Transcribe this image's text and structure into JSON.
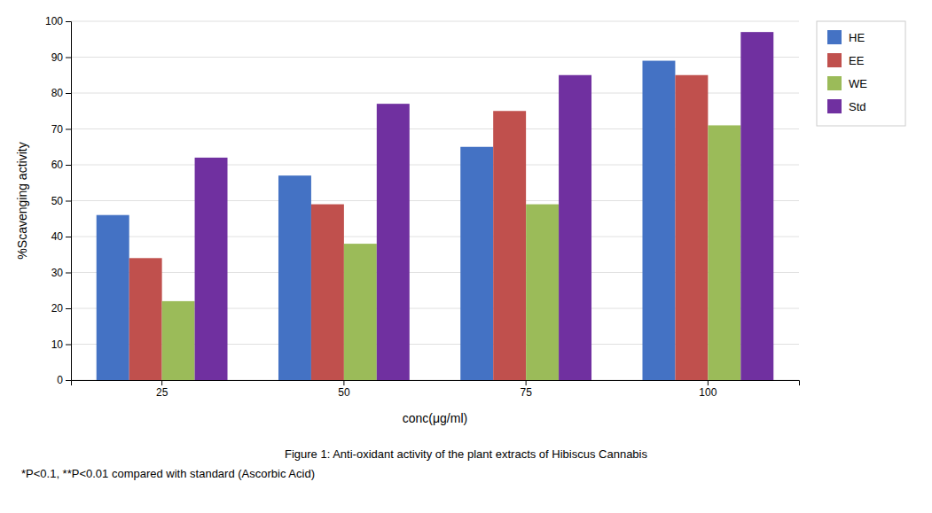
{
  "chart_data": {
    "type": "bar",
    "categories": [
      "25",
      "50",
      "75",
      "100"
    ],
    "series": [
      {
        "name": "HE",
        "color": "#4472C4",
        "values": [
          46,
          57,
          65,
          89
        ]
      },
      {
        "name": "EE",
        "color": "#C0504D",
        "values": [
          34,
          49,
          75,
          85
        ]
      },
      {
        "name": "WE",
        "color": "#9BBB59",
        "values": [
          22,
          38,
          49,
          71
        ]
      },
      {
        "name": "Std",
        "color": "#7030A0",
        "values": [
          62,
          77,
          85,
          97
        ]
      }
    ],
    "ylabel": "%Scavenging activity",
    "xlabel": "conc(μg/ml)",
    "ylim": [
      0,
      100
    ],
    "yticks": [
      0,
      10,
      20,
      30,
      40,
      50,
      60,
      70,
      80,
      90,
      100
    ],
    "grid": true,
    "legend": "right",
    "annotations": [
      "Figure 1: Anti-oxidant activity of the plant extracts of Hibiscus Cannabis",
      "*P<0.1, **P<0.01 compared with standard (Ascorbic Acid)"
    ]
  }
}
